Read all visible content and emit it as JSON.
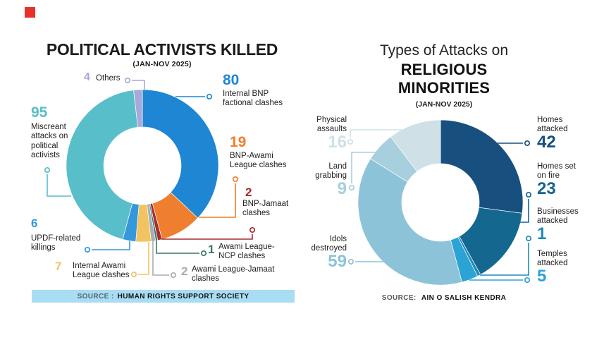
{
  "page": {
    "background": "#ffffff"
  },
  "brand_square_color": "#e8312d",
  "chart_data": [
    {
      "type": "pie",
      "variant": "donut",
      "title": "POLITICAL ACTIVISTS KILLED",
      "subtitle": "(JAN-NOV 2025)",
      "source_prefix": "SOURCE :",
      "source": "HUMAN RIGHTS SUPPORT SOCIETY",
      "source_bar_color": "#a9ddf4",
      "total": 216,
      "direction": "clockwise",
      "start_angle_deg": 0,
      "legend": "callout-labels",
      "segments": [
        {
          "id": "internal-bnp-factional-clashes",
          "label": "Internal BNP factional clashes",
          "label_lines": [
            "Internal BNP",
            "factional clashes"
          ],
          "value": 80,
          "color": "#1e86d2"
        },
        {
          "id": "bnp-awami-league-clashes",
          "label": "BNP-Awami League clashes",
          "label_lines": [
            "BNP-Awami",
            "League clashes"
          ],
          "value": 19,
          "color": "#ef7f2e"
        },
        {
          "id": "bnp-jamaat-clashes",
          "label": "BNP-Jamaat clashes",
          "label_lines": [
            "BNP-Jamaat",
            "clashes"
          ],
          "value": 2,
          "color": "#a82b32"
        },
        {
          "id": "awami-league-ncp-clashes",
          "label": "Awami League-NCP clashes",
          "label_lines": [
            "Awami League-",
            "NCP clashes"
          ],
          "value": 1,
          "color": "#3c7468"
        },
        {
          "id": "awami-league-jamaat-clashes",
          "label": "Awami League-Jamaat clashes",
          "label_lines": [
            "Awami League-Jamaat",
            "clashes"
          ],
          "value": 2,
          "color": "#a6adb0"
        },
        {
          "id": "internal-awami-league-clashes",
          "label": "Internal Awami League clashes",
          "label_lines": [
            "Internal Awami",
            "League clashes"
          ],
          "value": 7,
          "color": "#f1c361"
        },
        {
          "id": "updf-related-killings",
          "label": "UPDF-related killings",
          "label_lines": [
            "UPDF-related",
            "killings"
          ],
          "value": 6,
          "color": "#3498da"
        },
        {
          "id": "miscreant-attacks",
          "label": "Miscreant attacks on political activists",
          "label_lines": [
            "Miscreant",
            "attacks on",
            "political",
            "activists"
          ],
          "value": 95,
          "color": "#58bec9"
        },
        {
          "id": "others",
          "label": "Others",
          "label_lines": [
            "Others"
          ],
          "value": 4,
          "color": "#a9a8db"
        }
      ]
    },
    {
      "type": "pie",
      "variant": "donut",
      "title_line1": "Types of Attacks on",
      "title_line2": "RELIGIOUS",
      "title_line3": "MINORITIES",
      "subtitle": "(JAN-NOV 2025)",
      "source_prefix": "SOURCE:",
      "source": "AIN O SALISH KENDRA",
      "total": 155,
      "direction": "clockwise",
      "start_angle_deg": 0,
      "legend": "callout-labels",
      "segments": [
        {
          "id": "homes-attacked",
          "label": "Homes attacked",
          "label_lines": [
            "Homes",
            "attacked"
          ],
          "value": 42,
          "color": "#17507f"
        },
        {
          "id": "homes-set-on-fire",
          "label": "Homes set on fire",
          "label_lines": [
            "Homes set",
            "on fire"
          ],
          "value": 23,
          "color": "#14678f"
        },
        {
          "id": "businesses-attacked",
          "label": "Businesses attacked",
          "label_lines": [
            "Businesses",
            "attacked"
          ],
          "value": 1,
          "color": "#2089ba"
        },
        {
          "id": "temples-attacked",
          "label": "Temples attacked",
          "label_lines": [
            "Temples",
            "attacked"
          ],
          "value": 5,
          "color": "#2ba3d5"
        },
        {
          "id": "idols-destroyed",
          "label": "Idols destroyed",
          "label_lines": [
            "Idols",
            "destroyed"
          ],
          "value": 59,
          "color": "#8dc3d8"
        },
        {
          "id": "land-grabbing",
          "label": "Land grabbing",
          "label_lines": [
            "Land",
            "grabbing"
          ],
          "value": 9,
          "color": "#a7cfdd"
        },
        {
          "id": "physical-assaults",
          "label": "Physical assaults",
          "label_lines": [
            "Physical",
            "assaults"
          ],
          "value": 16,
          "color": "#cfe0e7"
        }
      ]
    }
  ]
}
